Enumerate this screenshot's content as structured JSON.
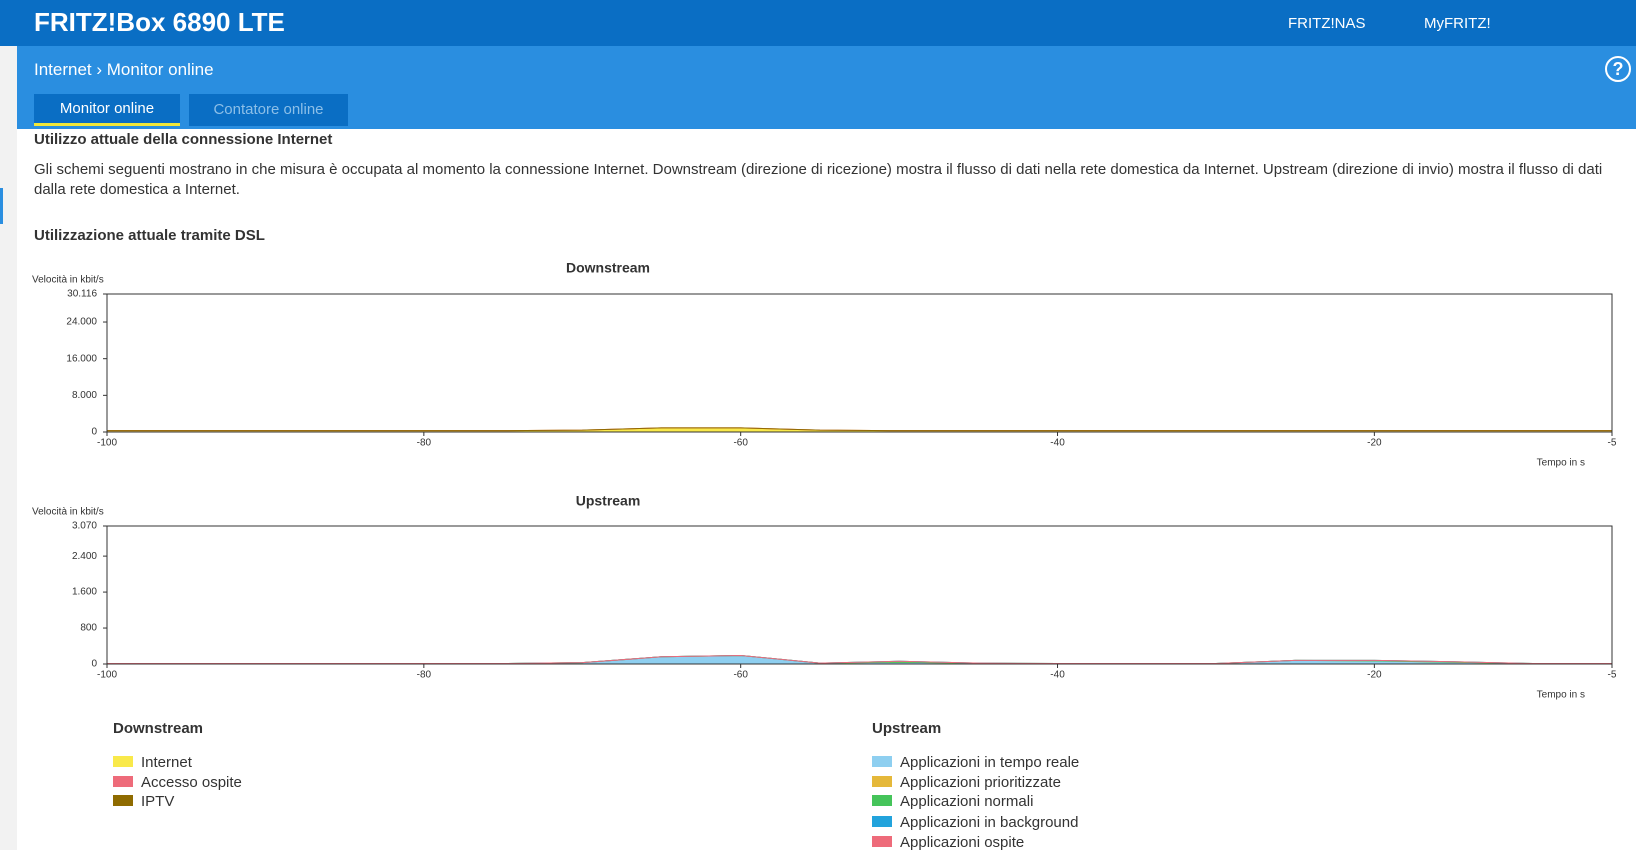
{
  "header": {
    "title": "FRITZ!Box 6890 LTE",
    "links": [
      "FRITZ!NAS",
      "MyFRITZ!"
    ]
  },
  "breadcrumb": [
    "Internet",
    "Monitor online"
  ],
  "tabs": [
    "Monitor online",
    "Contatore online"
  ],
  "section": {
    "heading": "Utilizzo attuale della connessione Internet",
    "text": "Gli schemi seguenti mostrano in che misura è occupata al momento la connessione Internet. Downstream (direzione di ricezione) mostra il flusso di dati nella rete domestica da Internet. Upstream (direzione di invio) mostra il flusso di dati dalla rete domestica a Internet.",
    "subheading": "Utilizzazione attuale tramite DSL"
  },
  "chart_data": [
    {
      "type": "area",
      "title": "Downstream",
      "y_label": "Velocità in kbit/s",
      "x_label": "Tempo in s",
      "x": [
        -100,
        -95,
        -90,
        -85,
        -80,
        -75,
        -70,
        -65,
        -60,
        -55,
        -50,
        -45,
        -40,
        -35,
        -30,
        -25,
        -20,
        -15,
        -10,
        -5
      ],
      "xlim": [
        -100,
        -5
      ],
      "xticks": [
        -100,
        -80,
        -60,
        -40,
        -20,
        -5
      ],
      "ylim": [
        0,
        30116
      ],
      "yticks": [
        0,
        {
          "value": 8000,
          "label": "8.000"
        },
        {
          "value": 16000,
          "label": "16.000"
        },
        {
          "value": 24000,
          "label": "24.000"
        },
        {
          "value": 30116,
          "label": "30.116"
        }
      ],
      "series": [
        {
          "name": "Internet",
          "color": "#f9e94a",
          "values": [
            300,
            300,
            300,
            300,
            300,
            300,
            400,
            900,
            900,
            400,
            300,
            300,
            300,
            300,
            300,
            300,
            300,
            300,
            300,
            300
          ]
        },
        {
          "name": "Accesso ospite",
          "color": "#ee6b7a",
          "values": [
            0,
            0,
            0,
            0,
            0,
            0,
            0,
            0,
            0,
            0,
            0,
            0,
            0,
            0,
            0,
            0,
            0,
            0,
            0,
            0
          ]
        },
        {
          "name": "IPTV",
          "color": "#8f6b00",
          "values": [
            0,
            0,
            0,
            0,
            0,
            0,
            0,
            0,
            0,
            0,
            0,
            0,
            0,
            0,
            0,
            0,
            0,
            0,
            0,
            0
          ]
        }
      ]
    },
    {
      "type": "area",
      "title": "Upstream",
      "y_label": "Velocità in kbit/s",
      "x_label": "Tempo in s",
      "x": [
        -100,
        -95,
        -90,
        -85,
        -80,
        -75,
        -70,
        -65,
        -60,
        -55,
        -50,
        -45,
        -40,
        -35,
        -30,
        -25,
        -20,
        -15,
        -10,
        -5
      ],
      "xlim": [
        -100,
        -5
      ],
      "xticks": [
        -100,
        -80,
        -60,
        -40,
        -20,
        -5
      ],
      "ylim": [
        0,
        3070
      ],
      "yticks": [
        0,
        800,
        {
          "value": 1600,
          "label": "1.600"
        },
        {
          "value": 2400,
          "label": "2.400"
        },
        {
          "value": 3070,
          "label": "3.070"
        }
      ],
      "series": [
        {
          "name": "Applicazioni in tempo reale",
          "color": "#8ecff0",
          "values": [
            10,
            10,
            10,
            10,
            10,
            10,
            30,
            160,
            190,
            20,
            40,
            20,
            10,
            10,
            10,
            80,
            70,
            40,
            10,
            10
          ]
        },
        {
          "name": "Applicazioni prioritizzate",
          "color": "#e5b83a",
          "values": [
            0,
            0,
            0,
            0,
            0,
            0,
            0,
            0,
            0,
            0,
            0,
            0,
            0,
            0,
            0,
            0,
            0,
            0,
            0,
            0
          ]
        },
        {
          "name": "Applicazioni normali",
          "color": "#45c45a",
          "values": [
            0,
            0,
            0,
            0,
            0,
            0,
            0,
            0,
            0,
            0,
            20,
            0,
            0,
            0,
            0,
            0,
            10,
            10,
            0,
            0
          ]
        },
        {
          "name": "Applicazioni in background",
          "color": "#22a3dc",
          "values": [
            0,
            0,
            0,
            0,
            0,
            0,
            0,
            0,
            0,
            0,
            0,
            0,
            0,
            0,
            0,
            0,
            0,
            0,
            0,
            0
          ]
        },
        {
          "name": "Applicazioni ospite",
          "color": "#ee6b7a",
          "values": [
            0,
            0,
            0,
            0,
            0,
            0,
            0,
            0,
            0,
            0,
            0,
            0,
            0,
            0,
            0,
            0,
            0,
            0,
            0,
            0
          ]
        }
      ]
    }
  ]
}
